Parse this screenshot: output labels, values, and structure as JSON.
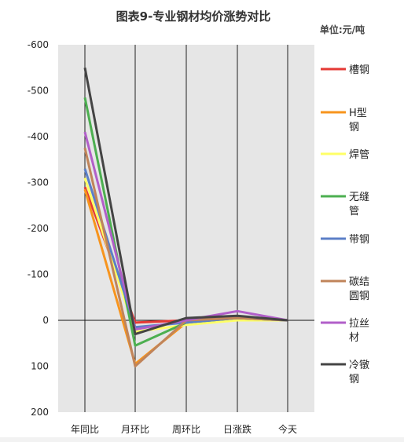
{
  "chart_data": {
    "type": "line",
    "title": "图表9-专业钢材均价涨势对比",
    "unit_label": "单位:元/吨",
    "categories": [
      "年同比",
      "月环比",
      "周环比",
      "日涨跌",
      "今天"
    ],
    "y_axis": {
      "reversed": true,
      "range": [
        -600,
        200
      ],
      "ticks": [
        "-600",
        "-500",
        "-400",
        "-300",
        "-200",
        "-100",
        "0",
        "100",
        "200"
      ]
    },
    "grid": "vertical lines at each category",
    "legend_position": "right",
    "series": [
      {
        "name": "槽钢",
        "color": "#e53935",
        "values": [
          -290,
          5,
          0,
          -5,
          0
        ]
      },
      {
        "name": "H型钢",
        "color": "#f7941d",
        "values": [
          -285,
          95,
          5,
          -5,
          0
        ]
      },
      {
        "name": "焊管",
        "color": "#ffff66",
        "values": [
          -310,
          25,
          10,
          0,
          0
        ]
      },
      {
        "name": "无缝管",
        "color": "#4caf50",
        "values": [
          -485,
          55,
          5,
          -5,
          0
        ]
      },
      {
        "name": "带钢",
        "color": "#5b7fc7",
        "values": [
          -330,
          15,
          5,
          -5,
          0
        ]
      },
      {
        "name": "碳结圆钢",
        "color": "#c0845a",
        "values": [
          -375,
          100,
          0,
          -5,
          0
        ]
      },
      {
        "name": "拉丝材",
        "color": "#b15fc9",
        "values": [
          -410,
          20,
          0,
          -20,
          0
        ]
      },
      {
        "name": "冷镦钢",
        "color": "#444444",
        "values": [
          -550,
          30,
          -5,
          -10,
          0
        ]
      }
    ]
  }
}
